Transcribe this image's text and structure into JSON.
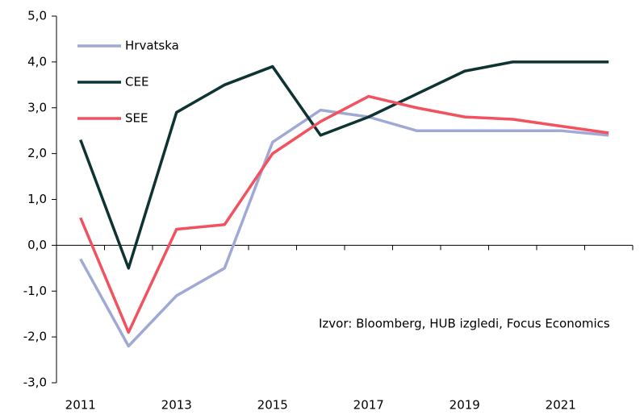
{
  "chart_data": {
    "type": "line",
    "categories": [
      "2011",
      null,
      "2013",
      null,
      "2015",
      null,
      "2017",
      null,
      "2019",
      null,
      "2021",
      null
    ],
    "series": [
      {
        "name": "Hrvatska",
        "color": "#a0a9d6",
        "values": [
          -0.3,
          -2.2,
          -1.1,
          -0.5,
          2.25,
          2.95,
          2.8,
          2.5,
          2.5,
          2.5,
          2.5,
          2.4
        ]
      },
      {
        "name": "CEE",
        "color": "#0e3333",
        "values": [
          2.3,
          -0.5,
          2.9,
          3.5,
          3.9,
          2.4,
          2.8,
          3.3,
          3.8,
          4.0,
          4.0,
          4.0
        ]
      },
      {
        "name": "SEE",
        "color": "#f2515f",
        "values": [
          0.6,
          -1.9,
          0.35,
          0.45,
          2.0,
          2.7,
          3.25,
          3.0,
          2.8,
          2.75,
          2.6,
          2.45
        ]
      }
    ],
    "ylim": [
      -3,
      5
    ],
    "yticks": [
      {
        "value": -3,
        "label": "-3,0"
      },
      {
        "value": -2,
        "label": "-2,0"
      },
      {
        "value": -1,
        "label": "-1,0"
      },
      {
        "value": 0,
        "label": "0,0"
      },
      {
        "value": 1,
        "label": "1,0"
      },
      {
        "value": 2,
        "label": "2,0"
      },
      {
        "value": 3,
        "label": "3,0"
      },
      {
        "value": 4,
        "label": "4,0"
      },
      {
        "value": 5,
        "label": "5,0"
      }
    ],
    "annotation": "Izvor: Bloomberg, HUB izgledi, Focus Economics",
    "legend": "upper-left"
  }
}
